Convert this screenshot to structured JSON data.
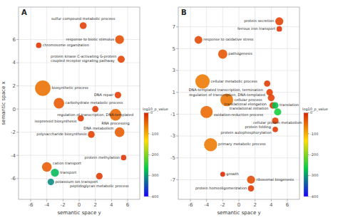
{
  "chart_data": [
    {
      "type": "bubble",
      "title": "A",
      "xlabel": "semantic space y",
      "ylabel": "semantic space x",
      "x": [
        0.5,
        5.0,
        -5.0,
        5.2,
        -4.5,
        -2.5,
        4.8,
        2.0,
        0.2,
        4.5,
        1.5,
        5.0,
        5.5,
        -4.0,
        -3.0,
        -3.5,
        2.5
      ],
      "values": [
        7.2,
        6.0,
        5.5,
        4.3,
        1.8,
        0.5,
        1.2,
        0.0,
        -0.8,
        -0.5,
        -2.2,
        -2.0,
        -4.2,
        -5.0,
        -5.5,
        -6.3,
        -5.8
      ],
      "sizes": [
        55,
        90,
        35,
        60,
        280,
        130,
        50,
        45,
        45,
        160,
        55,
        110,
        35,
        110,
        75,
        50,
        50
      ],
      "color_values": [
        -20,
        -30,
        -12,
        -22,
        -55,
        -38,
        -18,
        -15,
        -14,
        -48,
        -20,
        -40,
        -10,
        -40,
        -280,
        -310,
        -16
      ],
      "labels": [
        "sulfur compound metabolic process",
        "response to biotic stimulus",
        "chromosome organization",
        "protein kinase C-activating G-protein\ncoupled receptor signaling pathway",
        "biosynthetic process",
        "carbohydrate metabolic process",
        "DNA repair",
        "regulation of transcription, DNA-templated",
        "isoprenoid biosynthesis",
        "RNA processing",
        "polysaccharide biosynthesis",
        "DNA metabolism",
        "protein methylation",
        "cation transport",
        "transport",
        "potassium ion transport",
        "peptidoglycan metabolic process"
      ],
      "xlim": [
        -7.5,
        7.5
      ],
      "ylim": [
        -7.8,
        8.8
      ],
      "xticks": [
        -6,
        -4,
        -2,
        0,
        2,
        4,
        6
      ],
      "yticks": [
        -6,
        -4,
        -2,
        0,
        2,
        4,
        6
      ],
      "grid": true,
      "color_label": "log10_p_value",
      "color_range": [
        -400,
        0
      ],
      "color_ticks": [
        0,
        -100,
        -200,
        -300,
        -400
      ],
      "color_scale": [
        "#1a00ff",
        "#00cc44",
        "#ffdd00",
        "#dd2200"
      ]
    },
    {
      "type": "bubble",
      "title": "B",
      "xlabel": "semantic space y",
      "x": [
        5.0,
        5.0,
        -5.0,
        -2.0,
        -4.5,
        3.5,
        3.8,
        -1.5,
        4.0,
        4.2,
        -4.0,
        4.5,
        4.8,
        4.5,
        4.5,
        -3.5,
        -2.0,
        1.5,
        1.5
      ],
      "values": [
        7.5,
        6.8,
        5.8,
        4.5,
        2.0,
        1.8,
        1.0,
        0.3,
        0.5,
        -0.2,
        -0.8,
        -0.2,
        -0.8,
        -1.6,
        -2.4,
        -3.8,
        -6.5,
        -7.0,
        -7.8
      ],
      "sizes": [
        75,
        35,
        70,
        100,
        240,
        45,
        50,
        190,
        55,
        50,
        175,
        50,
        60,
        50,
        35,
        200,
        28,
        75,
        45
      ],
      "color_values": [
        -22,
        -10,
        -25,
        -35,
        -62,
        -16,
        -18,
        -58,
        -20,
        -16,
        -50,
        -275,
        -255,
        -18,
        -12,
        -62,
        -5,
        -28,
        -15
      ],
      "labels": [
        "protein secretion",
        "ferrous iron transport",
        "response to oxidative stress",
        "pathogenesis",
        "cellular metabolic process",
        "DNA-templated transcription, termination",
        "regulation of transcription, DNA-templated",
        "cellular process",
        "translational elongation",
        "translational initiation",
        "oxidation-reduction process",
        "translation",
        "cellular protein metabolism",
        "protein folding",
        "protein autophosphorylation",
        "primary metabolic process",
        "growth",
        "ribosomal biogenesis",
        "protein homooligomerization"
      ],
      "xlim": [
        -7.5,
        7.5
      ],
      "ylim": [
        -8.8,
        8.8
      ],
      "xticks": [
        -6,
        -4,
        -2,
        0,
        2,
        4,
        6
      ],
      "yticks": [
        -7,
        -5,
        -3,
        -1,
        1,
        3,
        5,
        7
      ],
      "grid": true,
      "color_label": "log10_p_value",
      "color_range": [
        -400,
        0
      ],
      "color_ticks": [
        0,
        -100,
        -200,
        -300,
        -400
      ],
      "color_scale": [
        "#1a00ff",
        "#00cc44",
        "#ffdd00",
        "#dd2200"
      ]
    }
  ]
}
